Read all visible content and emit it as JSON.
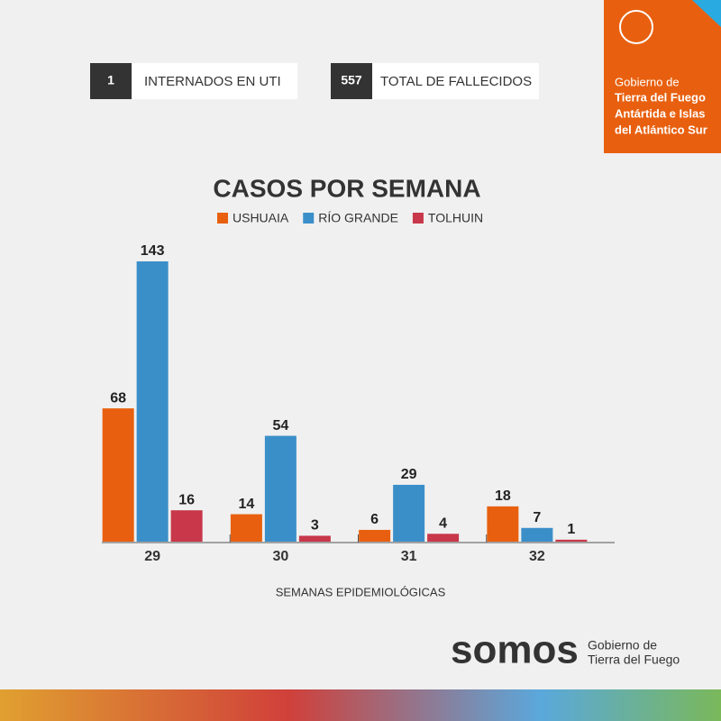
{
  "stats": [
    {
      "value": 1,
      "label": "INTERNADOS EN UTI"
    },
    {
      "value": 557,
      "label": "TOTAL DE FALLECIDOS"
    }
  ],
  "badge": {
    "lines": [
      "Gobierno de",
      "Tierra del Fuego",
      "Antártida e Islas",
      "del Atlántico Sur"
    ]
  },
  "chart_data": {
    "type": "bar",
    "title": "CASOS POR SEMANA",
    "x_label": "SEMANAS EPIDEMIOLÓGICAS",
    "categories": [
      "29",
      "30",
      "31",
      "32"
    ],
    "series": [
      {
        "name": "USHUAIA",
        "color": "#e8600f",
        "values": [
          68,
          14,
          6,
          18
        ]
      },
      {
        "name": "RÍO GRANDE",
        "color": "#3b8fc9",
        "values": [
          143,
          54,
          29,
          7
        ]
      },
      {
        "name": "TOLHUIN",
        "color": "#c8374a",
        "values": [
          16,
          3,
          4,
          1
        ]
      }
    ]
  },
  "footer": {
    "brand": "somos",
    "lines": [
      "Gobierno de",
      "Tierra del Fuego"
    ]
  }
}
